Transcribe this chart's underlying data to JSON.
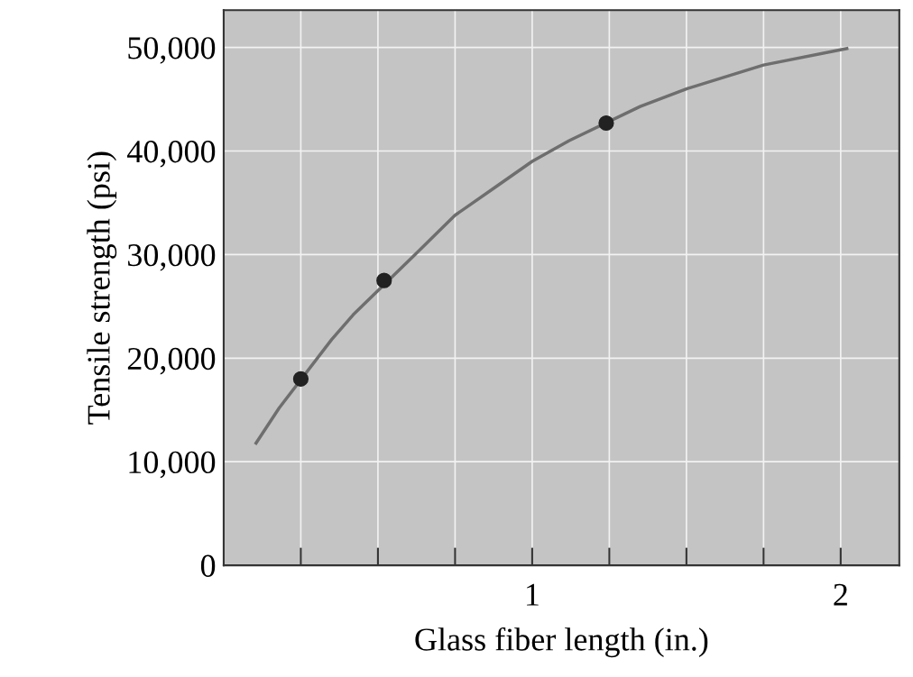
{
  "chart_data": {
    "type": "line",
    "xlabel": "Glass fiber length (in.)",
    "ylabel": "Tensile strength (psi)",
    "xlim": [
      0,
      2.19
    ],
    "ylim": [
      0,
      53600
    ],
    "xticks": [
      {
        "value": 0.25,
        "label": null
      },
      {
        "value": 0.5,
        "label": null
      },
      {
        "value": 0.75,
        "label": null
      },
      1,
      {
        "value": 1.25,
        "label": null
      },
      {
        "value": 1.5,
        "label": null
      },
      {
        "value": 1.75,
        "label": null
      },
      2
    ],
    "yticks": [
      {
        "value": 0,
        "label": "0"
      },
      {
        "value": 10000,
        "label": "10,000"
      },
      {
        "value": 20000,
        "label": "20,000"
      },
      {
        "value": 30000,
        "label": "30,000"
      },
      {
        "value": 40000,
        "label": "40,000"
      },
      {
        "value": 50000,
        "label": "50,000"
      }
    ],
    "grid": true,
    "series": [
      {
        "color": "#6e6e6e",
        "marker": "none",
        "line_style": "solid",
        "x": [
          0.105,
          0.18,
          0.35,
          0.42,
          0.62,
          0.75,
          0.88,
          1.0,
          1.12,
          1.35,
          1.5,
          1.75,
          2.02
        ],
        "values": [
          11800,
          15200,
          21800,
          24200,
          30000,
          33800,
          36500,
          39000,
          41000,
          44300,
          46000,
          48300,
          49900
        ]
      },
      {
        "type": "scatter",
        "color": "#222222",
        "marker": "circle",
        "x": [
          0.25,
          0.52,
          1.24
        ],
        "values": [
          18000,
          27500,
          42700
        ]
      }
    ]
  }
}
